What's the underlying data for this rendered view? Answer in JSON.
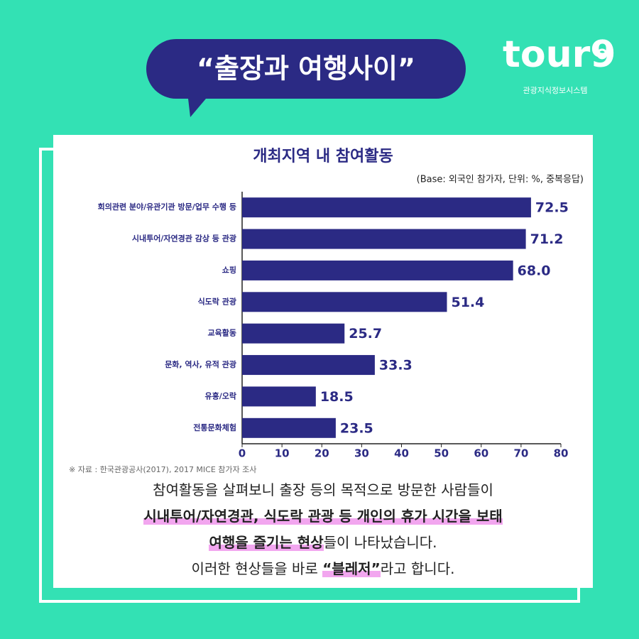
{
  "header": {
    "title": "“출장과 여행사이”"
  },
  "logo": {
    "name": "tour9",
    "subtitle": "관광지식정보시스템"
  },
  "chart_data": {
    "type": "hbar",
    "title": "개최지역 내 참여활동",
    "subtitle": "(Base: 외국인 참가자, 단위: %, 중복응답)",
    "categories": [
      "회의관련 분야/유관기관 방문/업무 수행 등",
      "시내투어/자연경관 감상 등 관광",
      "쇼핑",
      "식도락 관광",
      "교육활동",
      "문화, 역사, 유적 관광",
      "유흥/오락",
      "전통문화체험"
    ],
    "values": [
      72.5,
      71.2,
      68,
      51.4,
      25.7,
      33.3,
      18.5,
      23.5
    ],
    "value_labels": [
      "72.5",
      "71.2",
      "68.0",
      "51.4",
      "25.7",
      "33.3",
      "18.5",
      "23.5"
    ],
    "color": "#2b2a84",
    "xlim": [
      0,
      80
    ],
    "xticks": [
      0,
      10,
      20,
      30,
      40,
      50,
      60,
      70,
      80
    ],
    "grid": false
  },
  "source": "※ 자료 : 한국관광공사(2017), 2017 MICE 참가자 조사",
  "caption": {
    "lines": [
      {
        "segments": [
          {
            "text": "참여활동을 살펴보니 출장 등의 목적으로 방문한 사람들이",
            "highlight": false
          }
        ]
      },
      {
        "segments": [
          {
            "text": "시내투어/자연경관, 식도락 관광 등 개인의 휴가 시간을 보태",
            "highlight": true
          }
        ]
      },
      {
        "segments": [
          {
            "text": "여행을 즐기는 현상",
            "highlight": true
          },
          {
            "text": "들이 나타났습니다.",
            "highlight": false
          }
        ]
      },
      {
        "segments": [
          {
            "text": "이러한 현상들을 바로 ",
            "highlight": false
          },
          {
            "text": "“블레저”",
            "highlight": true
          },
          {
            "text": "라고 합니다.",
            "highlight": false
          }
        ]
      }
    ]
  }
}
